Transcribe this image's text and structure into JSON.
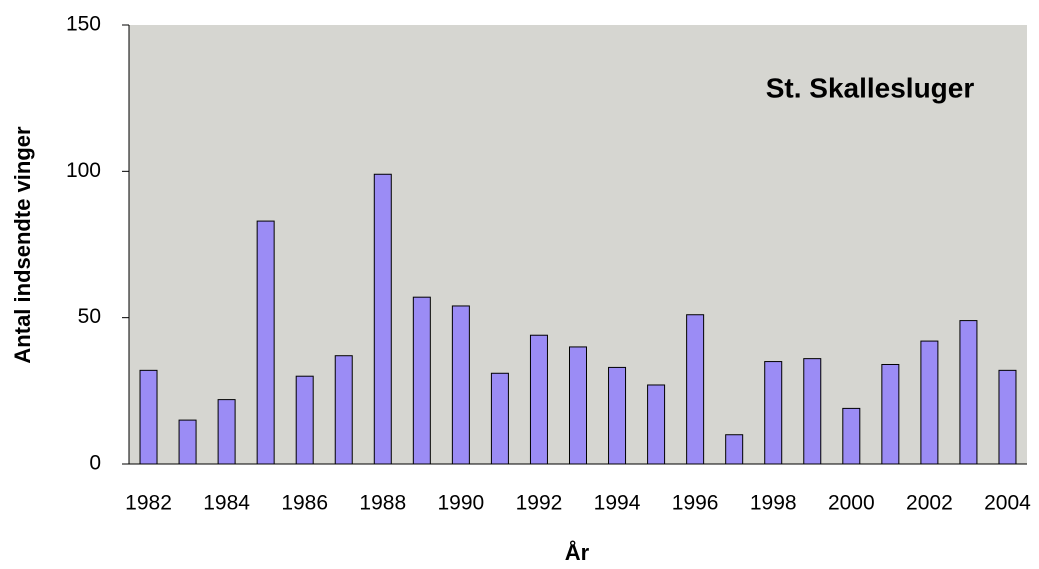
{
  "chart_data": {
    "type": "bar",
    "title": "St. Skallesluger",
    "xlabel": "År",
    "ylabel": "Antal indsendte vinger",
    "categories": [
      "1982",
      null,
      "1984",
      null,
      "1986",
      null,
      "1988",
      null,
      "1990",
      null,
      "1992",
      null,
      "1994",
      null,
      "1996",
      null,
      "1998",
      null,
      "2000",
      null,
      "2002",
      null,
      "2004"
    ],
    "values": [
      32,
      15,
      22,
      83,
      30,
      37,
      99,
      57,
      54,
      31,
      44,
      40,
      33,
      27,
      51,
      10,
      35,
      36,
      19,
      34,
      42,
      49,
      32
    ],
    "color": "#9b8cf5",
    "ylim": [
      0,
      150
    ],
    "yticks": [
      0,
      50,
      100,
      150
    ],
    "grid": false
  }
}
